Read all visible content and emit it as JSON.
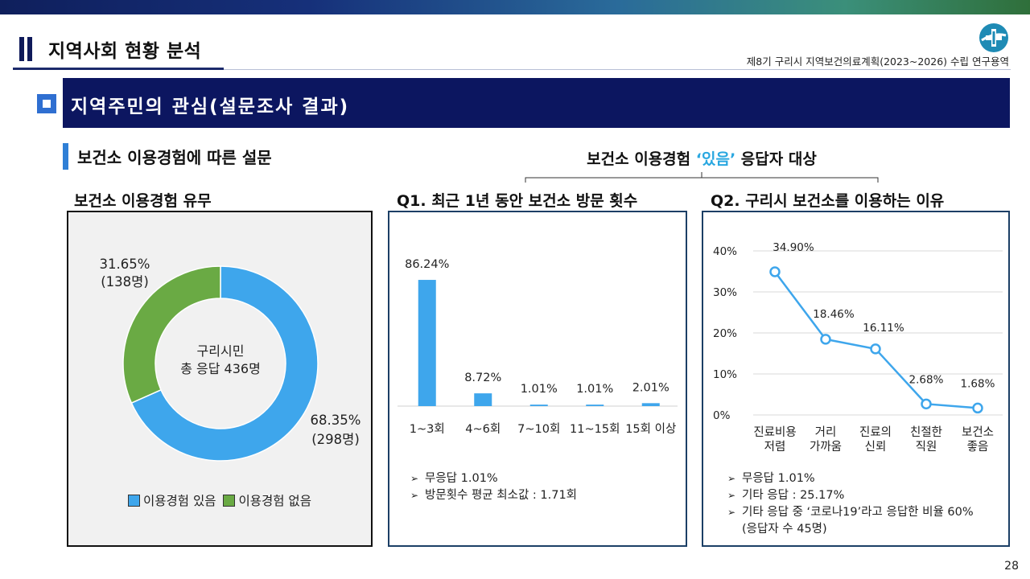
{
  "header": {
    "section_title": "지역사회 현황 분석",
    "project": "제8기 구리시 지역보건의료계획(2023~2026) 수립 연구용역"
  },
  "banner": {
    "title": "지역주민의 관심(설문조사 결과)"
  },
  "subheading": "보건소 이용경험에 따른 설문",
  "scope": {
    "prefix": "보건소 이용경험 ",
    "highlight": "‘있음’",
    "suffix": " 응답자 대상"
  },
  "colors": {
    "navy": "#0c1660",
    "blue": "#3ea6ec",
    "green": "#6aaa44",
    "line": "#3ea6ec"
  },
  "panels": {
    "p1": {
      "title": "보건소 이용경험 유무",
      "center_line1": "구리시민",
      "center_line2": "총 응답 436명",
      "label_no_pct": "31.65%",
      "label_no_cnt": "(138명)",
      "label_yes_pct": "68.35%",
      "label_yes_cnt": "(298명)",
      "legend_yes": "이용경험 있음",
      "legend_no": "이용경험 없음"
    },
    "p2": {
      "title": "Q1. 최근 1년 동안 보건소 방문 횟수",
      "notes": [
        "무응답 1.01%",
        "방문횟수 평균 최소값 : 1.71회"
      ]
    },
    "p3": {
      "title": "Q2. 구리시 보건소를 이용하는 이유",
      "notes": [
        "무응답 1.01%",
        "기타 응답 : 25.17%",
        "기타 응답 중 ‘코로나19’라고 응답한 비율 60%",
        "(응답자 수 45명)"
      ]
    }
  },
  "chart_data": [
    {
      "type": "pie",
      "donut": true,
      "title": "보건소 이용경험 유무",
      "center_text": [
        "구리시민",
        "총 응답 436명"
      ],
      "slices": [
        {
          "name": "이용경험 있음",
          "value": 68.35,
          "count": "(298명)",
          "label": "68.35%",
          "color": "#3ea6ec"
        },
        {
          "name": "이용경험 없음",
          "value": 31.65,
          "count": "(138명)",
          "label": "31.65%",
          "color": "#6aaa44"
        }
      ],
      "legend": "bottom"
    },
    {
      "type": "bar",
      "title": "Q1. 최근 1년 동안 보건소 방문 횟수",
      "categories": [
        "1~3회",
        "4~6회",
        "7~10회",
        "11~15회",
        "15회 이상"
      ],
      "values": [
        86.24,
        8.72,
        1.01,
        1.01,
        2.01
      ],
      "labels": [
        "86.24%",
        "8.72%",
        "1.01%",
        "1.01%",
        "2.01%"
      ],
      "ylim": [
        0,
        100
      ],
      "color": "#3ea6ec"
    },
    {
      "type": "line",
      "title": "Q2. 구리시 보건소를 이용하는 이유",
      "categories": [
        [
          "진료비용",
          "저렴"
        ],
        [
          "거리",
          "가까움"
        ],
        [
          "진료의",
          "신뢰"
        ],
        [
          "친절한",
          "직원"
        ],
        [
          "보건소",
          "좋음"
        ]
      ],
      "values": [
        34.9,
        18.46,
        16.11,
        2.68,
        1.68
      ],
      "labels": [
        "34.90%",
        "18.46%",
        "16.11%",
        "2.68%",
        "1.68%"
      ],
      "ylim": [
        0,
        40
      ],
      "yticks": [
        "0%",
        "10%",
        "20%",
        "30%",
        "40%"
      ],
      "grid": true,
      "color": "#3ea6ec"
    }
  ],
  "page_number": "28"
}
